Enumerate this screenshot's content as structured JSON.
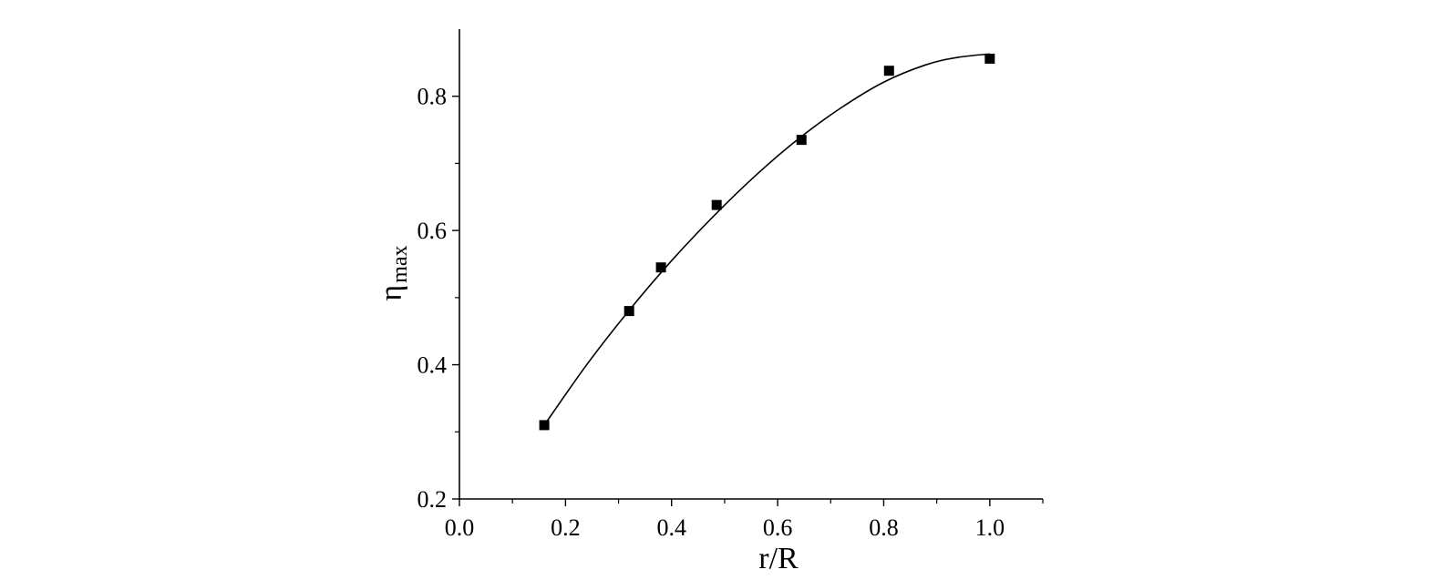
{
  "chart_data": {
    "type": "scatter",
    "title": "",
    "xlabel": "r/R",
    "ylabel_main": "η",
    "ylabel_sub": "max",
    "xlim": [
      0.0,
      1.1
    ],
    "ylim": [
      0.2,
      0.9
    ],
    "x_ticks": [
      0.0,
      0.2,
      0.4,
      0.6,
      0.8,
      1.0
    ],
    "x_tick_labels": [
      "0.0",
      "0.2",
      "0.4",
      "0.6",
      "0.8",
      "1.0"
    ],
    "y_ticks": [
      0.2,
      0.4,
      0.6,
      0.8
    ],
    "y_tick_labels": [
      "0.2",
      "0.4",
      "0.6",
      "0.8"
    ],
    "grid": false,
    "series": [
      {
        "marker": "square",
        "color": "#000000",
        "points": [
          {
            "x": 0.16,
            "y": 0.31
          },
          {
            "x": 0.32,
            "y": 0.48
          },
          {
            "x": 0.38,
            "y": 0.545
          },
          {
            "x": 0.485,
            "y": 0.638
          },
          {
            "x": 0.645,
            "y": 0.735
          },
          {
            "x": 0.81,
            "y": 0.838
          },
          {
            "x": 1.0,
            "y": 0.856
          }
        ]
      }
    ],
    "fit_curve": {
      "color": "#000000",
      "points": [
        {
          "x": 0.16,
          "y": 0.31
        },
        {
          "x": 0.24,
          "y": 0.4
        },
        {
          "x": 0.32,
          "y": 0.481
        },
        {
          "x": 0.4,
          "y": 0.555
        },
        {
          "x": 0.48,
          "y": 0.622
        },
        {
          "x": 0.56,
          "y": 0.683
        },
        {
          "x": 0.64,
          "y": 0.737
        },
        {
          "x": 0.72,
          "y": 0.783
        },
        {
          "x": 0.8,
          "y": 0.821
        },
        {
          "x": 0.88,
          "y": 0.847
        },
        {
          "x": 0.94,
          "y": 0.858
        },
        {
          "x": 1.0,
          "y": 0.863
        }
      ]
    }
  }
}
